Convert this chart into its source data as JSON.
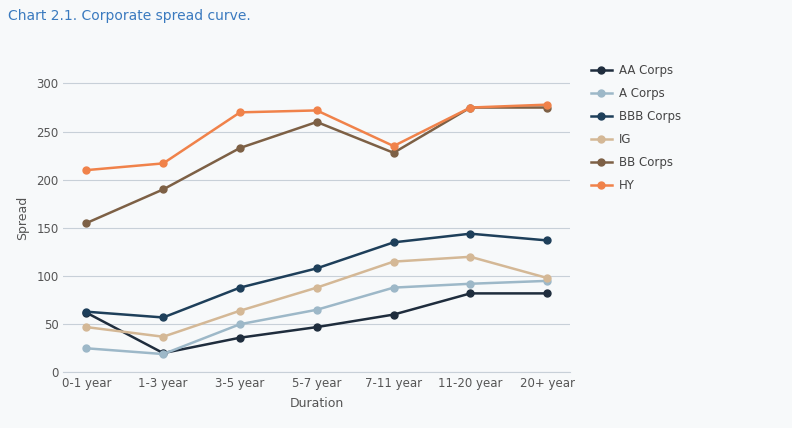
{
  "title": "Chart 2.1. Corporate spread curve.",
  "xlabel": "Duration",
  "ylabel": "Spread",
  "categories": [
    "0-1 year",
    "1-3 year",
    "3-5 year",
    "5-7 year",
    "7-11 year",
    "11-20 year",
    "20+ year"
  ],
  "series": [
    {
      "name": "AA Corps",
      "color": "#1f2d3d",
      "marker": "o",
      "values": [
        62,
        20,
        36,
        47,
        60,
        82,
        82
      ]
    },
    {
      "name": "A Corps",
      "color": "#9db8c8",
      "marker": "o",
      "values": [
        25,
        19,
        50,
        65,
        88,
        92,
        95
      ]
    },
    {
      "name": "BBB Corps",
      "color": "#1e3f5a",
      "marker": "o",
      "values": [
        63,
        57,
        88,
        108,
        135,
        144,
        137
      ]
    },
    {
      "name": "IG",
      "color": "#d4b896",
      "marker": "o",
      "values": [
        47,
        37,
        64,
        88,
        115,
        120,
        98
      ]
    },
    {
      "name": "BB Corps",
      "color": "#7d6045",
      "marker": "o",
      "values": [
        155,
        190,
        233,
        260,
        228,
        275,
        275
      ]
    },
    {
      "name": "HY",
      "color": "#f0824a",
      "marker": "o",
      "values": [
        210,
        217,
        270,
        272,
        235,
        275,
        278
      ]
    }
  ],
  "ylim": [
    0,
    320
  ],
  "yticks": [
    0,
    50,
    100,
    150,
    200,
    250,
    300
  ],
  "background_color": "#f7f9fa",
  "plot_bg_color": "#f7f9fa",
  "grid_color": "#c8d0d8",
  "title_color": "#3a7abf",
  "title_fontsize": 10,
  "axis_label_fontsize": 9,
  "tick_fontsize": 8.5,
  "legend_fontsize": 8.5,
  "line_width": 1.8,
  "marker_size": 5
}
